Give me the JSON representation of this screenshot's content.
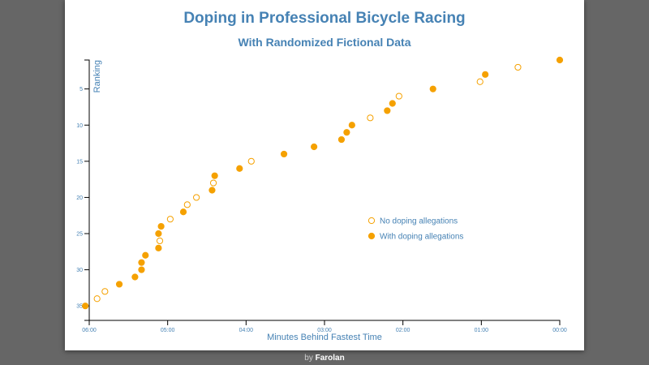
{
  "footer": {
    "by": "by",
    "author": "Farolan"
  },
  "chart_data": {
    "type": "scatter",
    "title": "Doping in Professional Bicycle Racing",
    "subtitle": "With Randomized Fictional Data",
    "xlabel": "Minutes Behind Fastest Time",
    "ylabel": "Ranking",
    "xlim": [
      0,
      360
    ],
    "ylim": [
      1,
      37
    ],
    "x_reversed": true,
    "y_reversed": true,
    "x_ticks": [
      {
        "value": 360,
        "label": "06:00"
      },
      {
        "value": 300,
        "label": "05:00"
      },
      {
        "value": 240,
        "label": "04:00"
      },
      {
        "value": 180,
        "label": "03:00"
      },
      {
        "value": 120,
        "label": "02:00"
      },
      {
        "value": 60,
        "label": "01:00"
      },
      {
        "value": 0,
        "label": "00:00"
      }
    ],
    "y_ticks": [
      {
        "value": 5,
        "label": "5"
      },
      {
        "value": 10,
        "label": "10"
      },
      {
        "value": 15,
        "label": "15"
      },
      {
        "value": 20,
        "label": "20"
      },
      {
        "value": 25,
        "label": "25"
      },
      {
        "value": 30,
        "label": "30"
      },
      {
        "value": 35,
        "label": "35"
      }
    ],
    "legend": {
      "position": "right-middle",
      "items": [
        {
          "label": "No doping allegations",
          "style": "hollow"
        },
        {
          "label": "With doping allegations",
          "style": "filled"
        }
      ]
    },
    "marker_color": "#f5a100",
    "series": [
      {
        "name": "No doping allegations",
        "style": "hollow",
        "points": [
          {
            "x": 32,
            "y": 2
          },
          {
            "x": 61,
            "y": 4
          },
          {
            "x": 123,
            "y": 6
          },
          {
            "x": 145,
            "y": 9
          },
          {
            "x": 236,
            "y": 15
          },
          {
            "x": 265,
            "y": 18
          },
          {
            "x": 278,
            "y": 20
          },
          {
            "x": 285,
            "y": 21
          },
          {
            "x": 298,
            "y": 23
          },
          {
            "x": 306,
            "y": 26
          },
          {
            "x": 348,
            "y": 33
          },
          {
            "x": 354,
            "y": 34
          }
        ]
      },
      {
        "name": "With doping allegations",
        "style": "filled",
        "points": [
          {
            "x": 0,
            "y": 1
          },
          {
            "x": 57,
            "y": 3
          },
          {
            "x": 97,
            "y": 5
          },
          {
            "x": 128,
            "y": 7
          },
          {
            "x": 132,
            "y": 8
          },
          {
            "x": 159,
            "y": 10
          },
          {
            "x": 163,
            "y": 11
          },
          {
            "x": 167,
            "y": 12
          },
          {
            "x": 188,
            "y": 13
          },
          {
            "x": 211,
            "y": 14
          },
          {
            "x": 245,
            "y": 16
          },
          {
            "x": 264,
            "y": 17
          },
          {
            "x": 266,
            "y": 19
          },
          {
            "x": 288,
            "y": 22
          },
          {
            "x": 305,
            "y": 24
          },
          {
            "x": 307,
            "y": 25
          },
          {
            "x": 307,
            "y": 27
          },
          {
            "x": 317,
            "y": 28
          },
          {
            "x": 320,
            "y": 29
          },
          {
            "x": 320,
            "y": 30
          },
          {
            "x": 325,
            "y": 31
          },
          {
            "x": 337,
            "y": 32
          },
          {
            "x": 363,
            "y": 35
          }
        ]
      }
    ]
  }
}
